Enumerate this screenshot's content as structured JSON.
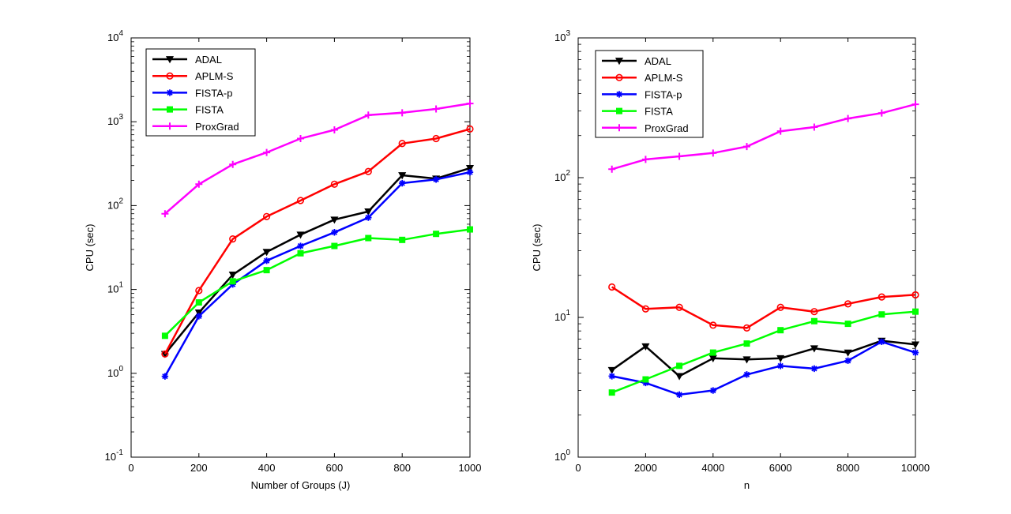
{
  "chart_data": [
    {
      "type": "line",
      "title": "",
      "xlabel": "Number of Groups (J)",
      "ylabel": "CPU (sec)",
      "yscale": "log",
      "xlim": [
        0,
        1000
      ],
      "ylim_exp": [
        -1,
        4
      ],
      "x_ticks": [
        "0",
        "200",
        "400",
        "600",
        "800",
        "1000"
      ],
      "x_tick_values": [
        0,
        200,
        400,
        600,
        800,
        1000
      ],
      "y_ticks": [
        {
          "base": "10",
          "exp": "-1",
          "value": 0.1
        },
        {
          "base": "10",
          "exp": "0",
          "value": 1
        },
        {
          "base": "10",
          "exp": "1",
          "value": 10
        },
        {
          "base": "10",
          "exp": "2",
          "value": 100
        },
        {
          "base": "10",
          "exp": "3",
          "value": 1000
        },
        {
          "base": "10",
          "exp": "4",
          "value": 10000
        }
      ],
      "legend_position": "top-left",
      "x": [
        100,
        200,
        300,
        400,
        500,
        600,
        700,
        800,
        900,
        1000
      ],
      "series": [
        {
          "name": "ADAL",
          "color": "#000000",
          "marker": "triangle-down",
          "values": [
            1.7,
            5.3,
            15,
            28,
            45,
            68,
            85,
            230,
            210,
            280
          ]
        },
        {
          "name": "APLM-S",
          "color": "#ff0000",
          "marker": "circle",
          "values": [
            1.7,
            9.7,
            40,
            74,
            115,
            180,
            255,
            550,
            630,
            820
          ]
        },
        {
          "name": "FISTA-p",
          "color": "#0000ff",
          "marker": "star",
          "values": [
            0.92,
            4.8,
            11.5,
            22,
            33,
            48,
            72,
            185,
            205,
            250
          ]
        },
        {
          "name": "FISTA",
          "color": "#00ff00",
          "marker": "square",
          "values": [
            2.8,
            7.0,
            12.5,
            17,
            27,
            33,
            41,
            39,
            46,
            52
          ]
        },
        {
          "name": "ProxGrad",
          "color": "#ff00ff",
          "marker": "plus",
          "values": [
            80,
            180,
            310,
            430,
            630,
            800,
            1200,
            1280,
            1420,
            1650
          ]
        }
      ]
    },
    {
      "type": "line",
      "title": "",
      "xlabel": "n",
      "ylabel": "CPU (sec)",
      "yscale": "log",
      "xlim": [
        0,
        10000
      ],
      "ylim_exp": [
        0,
        3
      ],
      "x_ticks": [
        "0",
        "2000",
        "4000",
        "6000",
        "8000",
        "10000"
      ],
      "x_tick_values": [
        0,
        2000,
        4000,
        6000,
        8000,
        10000
      ],
      "y_ticks": [
        {
          "base": "10",
          "exp": "0",
          "value": 1
        },
        {
          "base": "10",
          "exp": "1",
          "value": 10
        },
        {
          "base": "10",
          "exp": "2",
          "value": 100
        },
        {
          "base": "10",
          "exp": "3",
          "value": 1000
        }
      ],
      "legend_position": "top-left",
      "x": [
        1000,
        2000,
        3000,
        4000,
        5000,
        6000,
        7000,
        8000,
        9000,
        10000
      ],
      "series": [
        {
          "name": "ADAL",
          "color": "#000000",
          "marker": "triangle-down",
          "values": [
            4.2,
            6.2,
            3.8,
            5.1,
            5.0,
            5.1,
            6.0,
            5.6,
            6.8,
            6.4
          ]
        },
        {
          "name": "APLM-S",
          "color": "#ff0000",
          "marker": "circle",
          "values": [
            16.5,
            11.5,
            11.8,
            8.8,
            8.4,
            11.8,
            11.0,
            12.5,
            14.0,
            14.5
          ]
        },
        {
          "name": "FISTA-p",
          "color": "#0000ff",
          "marker": "star",
          "values": [
            3.8,
            3.4,
            2.8,
            3.0,
            3.9,
            4.5,
            4.3,
            4.9,
            6.7,
            5.6
          ]
        },
        {
          "name": "FISTA",
          "color": "#00ff00",
          "marker": "square",
          "values": [
            2.9,
            3.6,
            4.5,
            5.6,
            6.5,
            8.1,
            9.4,
            9.0,
            10.5,
            11.0
          ]
        },
        {
          "name": "ProxGrad",
          "color": "#ff00ff",
          "marker": "plus",
          "values": [
            115,
            135,
            142,
            150,
            167,
            215,
            230,
            265,
            290,
            335
          ]
        }
      ]
    }
  ]
}
